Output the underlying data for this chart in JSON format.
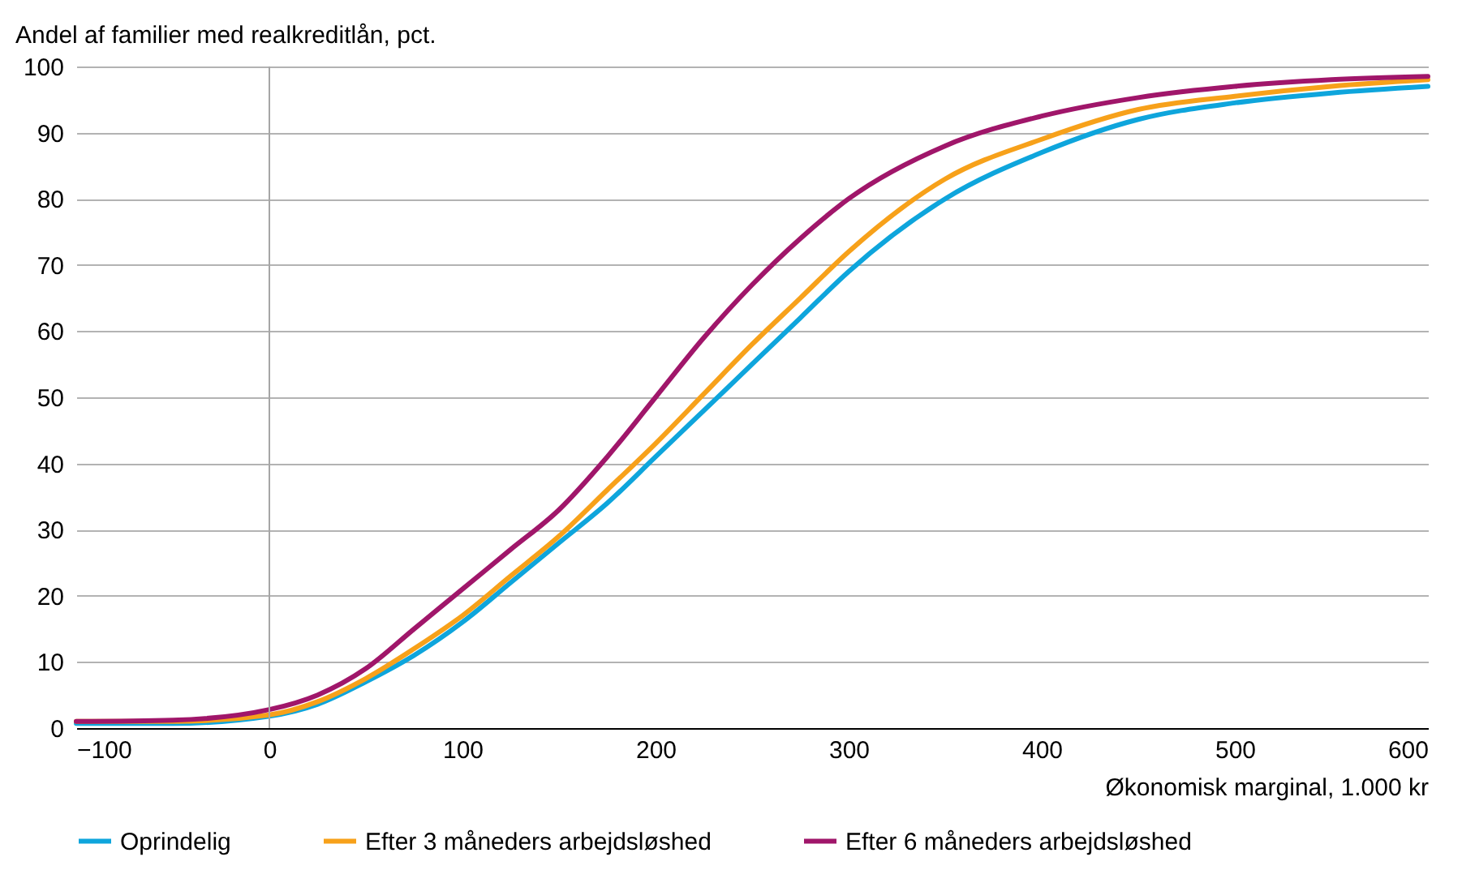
{
  "chart_data": {
    "type": "line",
    "ylabel": "Andel af familier med realkreditlån, pct.",
    "xlabel": "Økonomisk marginal, 1.000 kr",
    "x": [
      -100,
      -50,
      0,
      25,
      50,
      75,
      100,
      125,
      150,
      175,
      200,
      225,
      250,
      275,
      300,
      350,
      400,
      450,
      500,
      550,
      600
    ],
    "series": [
      {
        "name": "Oprindelig",
        "color": "#0ea5dc",
        "values": [
          0.7,
          0.7,
          1.8,
          3.6,
          7,
          11,
          16,
          22,
          28,
          34,
          41,
          48,
          55,
          62,
          69,
          80,
          87,
          92,
          94.5,
          96,
          97
        ]
      },
      {
        "name": "Efter 3 måneders arbejdsløshed",
        "color": "#f7a11a",
        "values": [
          1,
          1,
          2,
          4,
          7.5,
          12,
          17,
          23,
          29,
          36,
          43,
          50.5,
          58,
          65,
          72,
          83,
          89,
          93.5,
          95.5,
          97,
          98
        ]
      },
      {
        "name": "Efter 6 måneders arbejdsløshed",
        "color": "#a0166a",
        "values": [
          1,
          1.2,
          2.8,
          5,
          9,
          15,
          21,
          27,
          33,
          41,
          50,
          59,
          67,
          74,
          80,
          88,
          92.5,
          95.3,
          97,
          98,
          98.5
        ]
      }
    ],
    "xlim": [
      -100,
      600
    ],
    "xticks": [
      -100,
      0,
      100,
      200,
      300,
      400,
      500,
      600
    ],
    "ylim": [
      0,
      100
    ],
    "yticks": [
      0,
      10,
      20,
      30,
      40,
      50,
      60,
      70,
      80,
      90,
      100
    ],
    "ref_lines": [
      {
        "axis": "x",
        "value": 0,
        "color": "#a6a6a6"
      }
    ],
    "grid": "y",
    "legend": "bottom",
    "marker": "none",
    "line_style": "solid"
  }
}
